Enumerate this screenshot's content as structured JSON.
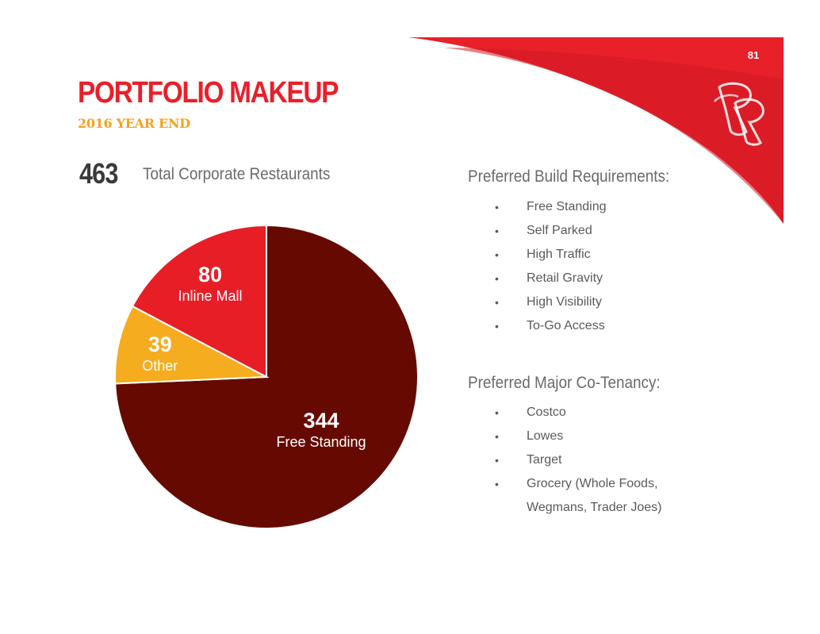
{
  "page_number": "81",
  "title": "PORTFOLIO MAKEUP",
  "subtitle": "2016 YEAR END",
  "total": {
    "value": "463",
    "label": "Total Corporate Restaurants"
  },
  "colors": {
    "brand_red": "#e8202a",
    "dark_red": "#6b0a02",
    "gold": "#f5a01e"
  },
  "logo_icon": "rr-monogram-icon",
  "chart_data": {
    "type": "pie",
    "title": "",
    "slices": [
      {
        "name": "Free Standing",
        "value": 344,
        "value_label": "344",
        "color": "#660a01"
      },
      {
        "name": "Other",
        "value": 39,
        "value_label": "39",
        "color": "#f5ac1f"
      },
      {
        "name": "Inline Mall",
        "value": 80,
        "value_label": "80",
        "color": "#e81e26"
      }
    ]
  },
  "build_requirements": {
    "heading": "Preferred Build Requirements:",
    "items": [
      "Free Standing",
      "Self Parked",
      "High Traffic",
      "Retail Gravity",
      "High Visibility",
      "To-Go Access"
    ]
  },
  "co_tenancy": {
    "heading": "Preferred Major Co-Tenancy:",
    "items": [
      "Costco",
      "Lowes",
      "Target",
      "Grocery (Whole Foods,",
      "Wegmans, Trader Joes)"
    ]
  }
}
